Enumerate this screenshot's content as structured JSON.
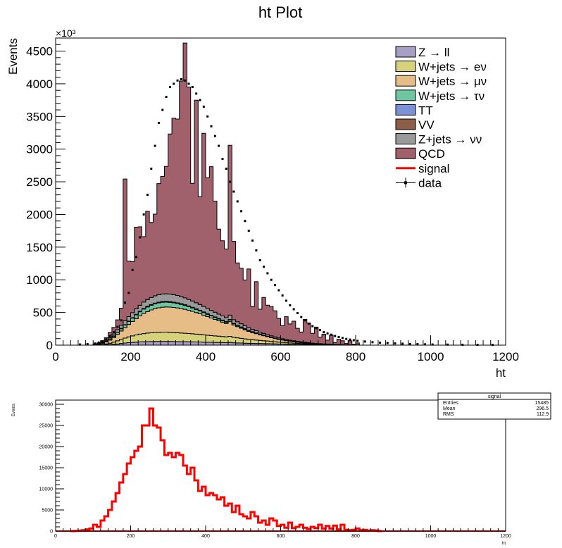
{
  "chart_data": [
    {
      "type": "area",
      "stacked": true,
      "title": "ht Plot",
      "xlabel": "ht",
      "ylabel": "Events",
      "y_multiplier": "×10³",
      "xlim": [
        0,
        1200
      ],
      "ylim": [
        0,
        4700
      ],
      "xticks": [
        "0",
        "200",
        "400",
        "600",
        "800",
        "1000",
        "1200"
      ],
      "yticks": [
        "0",
        "500",
        "1000",
        "1500",
        "2000",
        "2500",
        "3000",
        "3500",
        "4000",
        "4500"
      ],
      "grid": false,
      "legend_position": "top-right",
      "bin_width": 10,
      "x": [
        60,
        70,
        80,
        90,
        100,
        110,
        120,
        130,
        140,
        150,
        160,
        170,
        180,
        190,
        200,
        210,
        220,
        230,
        240,
        250,
        260,
        270,
        280,
        290,
        300,
        310,
        320,
        330,
        340,
        350,
        360,
        370,
        380,
        390,
        400,
        410,
        420,
        430,
        440,
        450,
        460,
        470,
        480,
        490,
        500,
        510,
        520,
        530,
        540,
        550,
        560,
        570,
        580,
        590,
        600,
        610,
        620,
        630,
        640,
        650,
        660,
        670,
        680,
        690,
        700,
        710,
        720,
        730,
        740,
        750,
        760,
        770,
        780,
        790,
        800
      ],
      "series": [
        {
          "name": "Z → ll",
          "color": "#a8a0c4",
          "values": [
            0,
            0,
            0,
            0,
            1,
            2,
            3,
            5,
            8,
            12,
            18,
            25,
            32,
            38,
            42,
            46,
            50,
            52,
            54,
            55,
            56,
            57,
            57,
            57,
            56,
            55,
            54,
            53,
            52,
            51,
            50,
            49,
            48,
            46,
            44,
            43,
            42,
            41,
            40,
            38,
            40,
            36,
            34,
            32,
            30,
            28,
            27,
            26,
            25,
            24,
            23,
            21,
            20,
            18,
            17,
            15,
            14,
            13,
            12,
            11,
            10,
            9,
            8,
            7,
            6,
            5,
            5,
            4,
            3,
            3,
            2,
            2,
            2,
            1,
            1
          ]
        },
        {
          "name": "W+jets → eν",
          "color": "#d6d27c",
          "values": [
            0,
            0,
            0,
            0,
            2,
            4,
            8,
            14,
            22,
            34,
            48,
            62,
            76,
            88,
            100,
            110,
            118,
            124,
            130,
            134,
            138,
            140,
            142,
            142,
            140,
            138,
            136,
            133,
            130,
            127,
            124,
            120,
            116,
            112,
            108,
            104,
            100,
            96,
            92,
            88,
            95,
            84,
            78,
            72,
            66,
            60,
            56,
            52,
            48,
            44,
            40,
            36,
            32,
            28,
            25,
            22,
            20,
            18,
            16,
            14,
            12,
            10,
            9,
            8,
            7,
            6,
            5,
            4,
            3,
            3,
            2,
            2,
            2,
            1,
            1
          ]
        },
        {
          "name": "W+jets → μν",
          "color": "#e6bc87",
          "values": [
            0,
            0,
            0,
            0,
            5,
            10,
            18,
            30,
            48,
            70,
            100,
            130,
            160,
            190,
            220,
            250,
            280,
            310,
            330,
            350,
            365,
            375,
            382,
            386,
            386,
            384,
            380,
            374,
            366,
            356,
            344,
            330,
            316,
            300,
            284,
            268,
            252,
            236,
            220,
            205,
            225,
            190,
            172,
            155,
            138,
            122,
            110,
            98,
            86,
            76,
            66,
            57,
            49,
            42,
            36,
            31,
            26,
            22,
            18,
            15,
            12,
            10,
            8,
            7,
            6,
            5,
            4,
            3,
            3,
            2,
            2,
            1,
            1,
            1,
            1
          ]
        },
        {
          "name": "W+jets → τν",
          "color": "#6ec6a0",
          "values": [
            0,
            0,
            0,
            0,
            2,
            4,
            7,
            11,
            16,
            22,
            28,
            34,
            40,
            46,
            52,
            58,
            63,
            67,
            70,
            72,
            74,
            75,
            75,
            74,
            72,
            70,
            67,
            64,
            60,
            56,
            52,
            48,
            44,
            40,
            36,
            33,
            30,
            27,
            24,
            22,
            25,
            18,
            16,
            14,
            12,
            10,
            9,
            8,
            7,
            6,
            5,
            4,
            4,
            3,
            3,
            2,
            2,
            2,
            1,
            1,
            1,
            1,
            1,
            0,
            0,
            0,
            0,
            0,
            0,
            0,
            0,
            0,
            0,
            0,
            0
          ]
        },
        {
          "name": "TT",
          "color": "#7b93d6",
          "values": [
            0,
            0,
            0,
            0,
            0,
            0,
            0,
            0,
            1,
            1,
            1,
            2,
            2,
            2,
            3,
            3,
            3,
            4,
            4,
            4,
            4,
            5,
            5,
            5,
            5,
            5,
            5,
            5,
            5,
            5,
            5,
            5,
            5,
            5,
            4,
            4,
            4,
            4,
            4,
            4,
            4,
            3,
            3,
            3,
            3,
            3,
            2,
            2,
            2,
            2,
            2,
            2,
            1,
            1,
            1,
            1,
            1,
            1,
            1,
            1,
            1,
            1,
            0,
            0,
            0,
            0,
            0,
            0,
            0,
            0,
            0,
            0,
            0,
            0,
            0
          ]
        },
        {
          "name": "VV",
          "color": "#8c5e47",
          "values": [
            0,
            0,
            0,
            0,
            0,
            0,
            1,
            1,
            1,
            2,
            2,
            3,
            3,
            4,
            4,
            5,
            5,
            5,
            6,
            6,
            6,
            6,
            6,
            6,
            6,
            6,
            6,
            6,
            6,
            5,
            5,
            5,
            5,
            5,
            5,
            4,
            4,
            4,
            4,
            4,
            4,
            3,
            3,
            3,
            3,
            3,
            2,
            2,
            2,
            2,
            2,
            2,
            1,
            1,
            1,
            1,
            1,
            1,
            1,
            1,
            1,
            1,
            0,
            0,
            0,
            0,
            0,
            0,
            0,
            0,
            0,
            0,
            0,
            0,
            0
          ]
        },
        {
          "name": "Z+jets → νν",
          "color": "#9a9a9a",
          "values": [
            0,
            0,
            0,
            0,
            2,
            4,
            8,
            13,
            20,
            30,
            40,
            50,
            60,
            68,
            76,
            84,
            92,
            98,
            104,
            108,
            112,
            114,
            116,
            116,
            116,
            114,
            112,
            108,
            104,
            100,
            96,
            92,
            88,
            84,
            80,
            76,
            72,
            68,
            64,
            60,
            66,
            56,
            52,
            48,
            44,
            40,
            36,
            33,
            30,
            27,
            24,
            21,
            19,
            17,
            15,
            13,
            11,
            10,
            9,
            8,
            7,
            6,
            5,
            4,
            4,
            3,
            3,
            2,
            2,
            2,
            1,
            1,
            1,
            1,
            1
          ]
        },
        {
          "name": "QCD",
          "color": "#a0606c",
          "values": [
            0,
            0,
            0,
            0,
            0,
            10,
            20,
            40,
            80,
            100,
            150,
            260,
            2170,
            850,
            780,
            1250,
            1200,
            1000,
            1350,
            1150,
            1250,
            1700,
            1800,
            1950,
            2450,
            2700,
            2700,
            3300,
            3900,
            3250,
            1800,
            3100,
            1650,
            2650,
            2000,
            2200,
            1700,
            1300,
            1150,
            1050,
            2600,
            1200,
            900,
            850,
            700,
            900,
            350,
            750,
            350,
            550,
            450,
            450,
            400,
            300,
            200,
            350,
            250,
            300,
            200,
            150,
            350,
            300,
            150,
            250,
            100,
            150,
            60,
            140,
            30,
            80,
            60,
            20,
            60,
            10,
            30
          ]
        }
      ],
      "signal": {
        "name": "signal",
        "color": "#ff0000"
      },
      "data": {
        "name": "data",
        "x": [
          60,
          80,
          100,
          110,
          120,
          130,
          140,
          150,
          160,
          170,
          180,
          190,
          200,
          210,
          220,
          230,
          240,
          250,
          260,
          270,
          280,
          290,
          300,
          310,
          320,
          330,
          340,
          350,
          360,
          370,
          380,
          390,
          400,
          410,
          420,
          430,
          440,
          450,
          460,
          470,
          480,
          490,
          500,
          510,
          520,
          530,
          540,
          550,
          560,
          570,
          580,
          590,
          600,
          610,
          620,
          630,
          640,
          650,
          660,
          670,
          680,
          690,
          700,
          710,
          720,
          730,
          740,
          750,
          760,
          770,
          780,
          790,
          800,
          820,
          840,
          860,
          880,
          900,
          920,
          940,
          960,
          980,
          1000,
          1040,
          1080,
          1120,
          1160
        ],
        "y": [
          10,
          15,
          25,
          40,
          60,
          90,
          140,
          200,
          280,
          380,
          650,
          800,
          1150,
          1350,
          1650,
          2000,
          2300,
          2700,
          3050,
          3400,
          3600,
          3800,
          3950,
          4000,
          4050,
          4070,
          4050,
          4000,
          3950,
          3850,
          3750,
          3650,
          3500,
          3350,
          3200,
          3050,
          2850,
          2700,
          2500,
          2350,
          2200,
          2050,
          1900,
          1750,
          1600,
          1450,
          1300,
          1200,
          1100,
          1000,
          920,
          840,
          760,
          680,
          610,
          550,
          490,
          430,
          380,
          330,
          290,
          260,
          230,
          200,
          180,
          160,
          140,
          125,
          110,
          95,
          85,
          75,
          65,
          55,
          45,
          38,
          32,
          26,
          22,
          18,
          15,
          12,
          10,
          8,
          6,
          5,
          4
        ]
      }
    },
    {
      "type": "line",
      "title": "",
      "xlabel": "ht",
      "ylabel": "Events",
      "xlim": [
        0,
        1200
      ],
      "ylim": [
        0,
        31000
      ],
      "xticks": [
        "0",
        "200",
        "400",
        "600",
        "800",
        "1000",
        "1200"
      ],
      "yticks": [
        "0",
        "5000",
        "10000",
        "15000",
        "20000",
        "25000",
        "30000"
      ],
      "grid": false,
      "bin_width": 10,
      "series": [
        {
          "name": "signal",
          "color": "#ff0000",
          "x": [
            40,
            50,
            60,
            70,
            80,
            90,
            100,
            110,
            120,
            130,
            140,
            150,
            160,
            170,
            180,
            190,
            200,
            210,
            220,
            230,
            240,
            250,
            260,
            270,
            280,
            290,
            300,
            310,
            320,
            330,
            340,
            350,
            360,
            370,
            380,
            390,
            400,
            410,
            420,
            430,
            440,
            450,
            460,
            470,
            480,
            490,
            500,
            510,
            520,
            530,
            540,
            550,
            560,
            570,
            580,
            590,
            600,
            610,
            620,
            630,
            640,
            650,
            660,
            670,
            680,
            690,
            700,
            710,
            720,
            730,
            740,
            750,
            760,
            770,
            780,
            790,
            800,
            810,
            820,
            830,
            840,
            850,
            860
          ],
          "values": [
            0,
            50,
            100,
            200,
            400,
            600,
            1500,
            1000,
            2500,
            3500,
            5000,
            7000,
            9000,
            11500,
            13500,
            16000,
            17500,
            19000,
            20000,
            25000,
            25000,
            29000,
            25000,
            24500,
            21500,
            18000,
            18500,
            17500,
            18500,
            18000,
            15500,
            13500,
            15000,
            12000,
            9500,
            10500,
            8500,
            9000,
            8500,
            7500,
            8000,
            6000,
            6500,
            4500,
            6000,
            4000,
            3500,
            3000,
            4500,
            3500,
            2000,
            2500,
            1500,
            3000,
            2500,
            1200,
            1500,
            800,
            2000,
            700,
            1000,
            1500,
            800,
            500,
            1000,
            700,
            1500,
            600,
            1200,
            600,
            1300,
            400,
            1500,
            300,
            200,
            300,
            600,
            200,
            300,
            100,
            200,
            150,
            0
          ]
        }
      ],
      "stats_box": {
        "title": "signal",
        "rows": [
          {
            "label": "Entries",
            "value": "15485"
          },
          {
            "label": "Mean",
            "value": "296.5"
          },
          {
            "label": "RMS",
            "value": "112.9"
          }
        ]
      }
    }
  ]
}
